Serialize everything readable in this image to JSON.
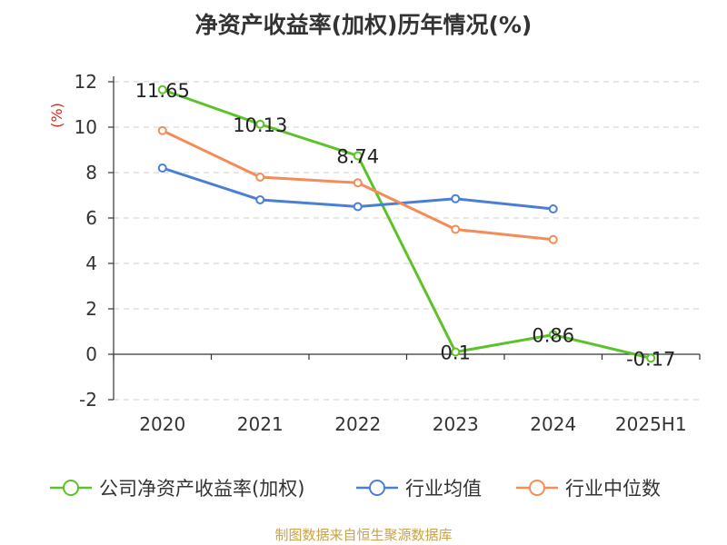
{
  "chart_data": {
    "type": "line",
    "title": "净资产收益率(加权)历年情况(%)",
    "ylabel": "(%)",
    "categories": [
      "2020",
      "2021",
      "2022",
      "2023",
      "2024",
      "2025H1"
    ],
    "ylim": [
      -2,
      12
    ],
    "yticks": [
      -2,
      0,
      2,
      4,
      6,
      8,
      10,
      12
    ],
    "grid": true,
    "legend_position": "bottom",
    "series": [
      {
        "name": "公司净资产收益率(加权)",
        "color": "#5cc22a",
        "values": [
          11.65,
          10.13,
          8.74,
          0.1,
          0.86,
          -0.17
        ],
        "labels": [
          "11.65",
          "10.13",
          "8.74",
          "0.1",
          "0.86",
          "-0.17"
        ]
      },
      {
        "name": "行业均值",
        "color": "#4a7fd6",
        "values": [
          8.2,
          6.8,
          6.5,
          6.85,
          6.4,
          null
        ]
      },
      {
        "name": "行业中位数",
        "color": "#f48c58",
        "values": [
          9.85,
          7.8,
          7.55,
          5.5,
          5.05,
          null
        ]
      }
    ]
  },
  "source": "制图数据来自恒生聚源数据库"
}
